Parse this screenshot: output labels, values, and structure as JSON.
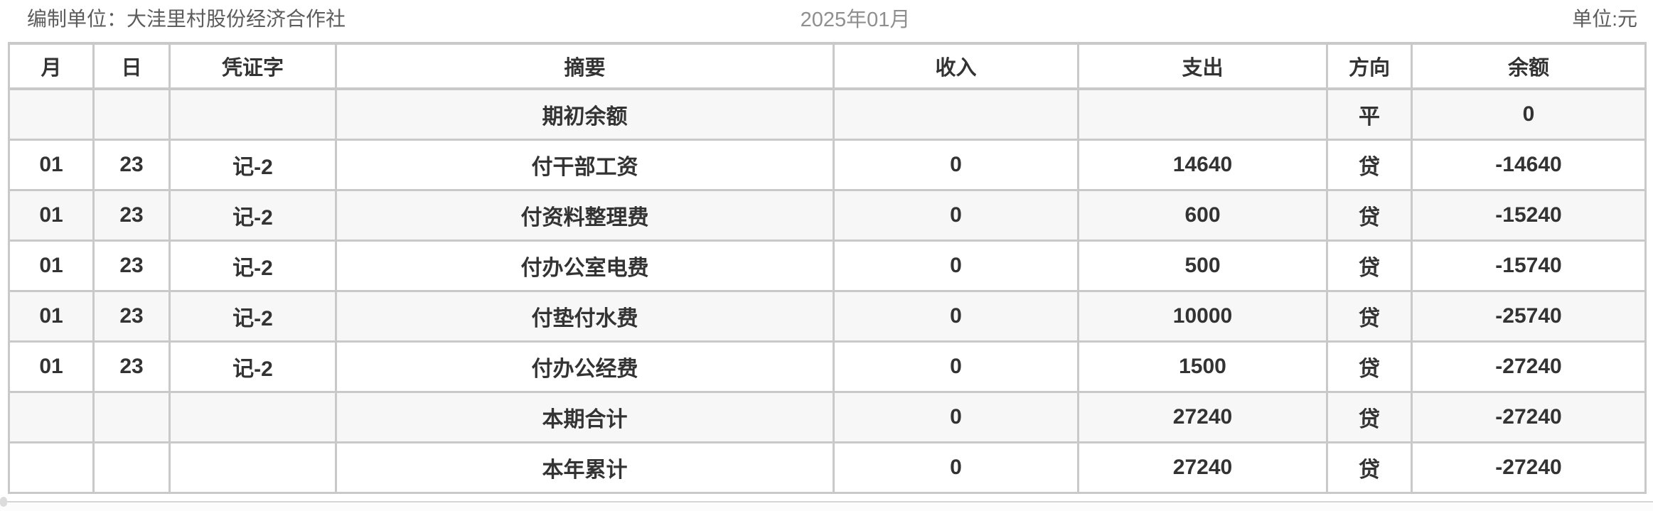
{
  "header": {
    "unit_label": "编制单位：大洼里村股份经济合作社",
    "period": "2025年01月",
    "currency_label": "单位:元"
  },
  "table": {
    "columns": [
      "月",
      "日",
      "凭证字",
      "摘要",
      "收入",
      "支出",
      "方向",
      "余额"
    ],
    "rows": [
      {
        "month": "",
        "day": "",
        "voucher": "",
        "summary": "期初余额",
        "income": "",
        "expense": "",
        "direction": "平",
        "balance": "0"
      },
      {
        "month": "01",
        "day": "23",
        "voucher": "记-2",
        "summary": "付干部工资",
        "income": "0",
        "expense": "14640",
        "direction": "贷",
        "balance": "-14640"
      },
      {
        "month": "01",
        "day": "23",
        "voucher": "记-2",
        "summary": "付资料整理费",
        "income": "0",
        "expense": "600",
        "direction": "贷",
        "balance": "-15240"
      },
      {
        "month": "01",
        "day": "23",
        "voucher": "记-2",
        "summary": "付办公室电费",
        "income": "0",
        "expense": "500",
        "direction": "贷",
        "balance": "-15740"
      },
      {
        "month": "01",
        "day": "23",
        "voucher": "记-2",
        "summary": "付垫付水费",
        "income": "0",
        "expense": "10000",
        "direction": "贷",
        "balance": "-25740"
      },
      {
        "month": "01",
        "day": "23",
        "voucher": "记-2",
        "summary": "付办公经费",
        "income": "0",
        "expense": "1500",
        "direction": "贷",
        "balance": "-27240"
      },
      {
        "month": "",
        "day": "",
        "voucher": "",
        "summary": "本期合计",
        "income": "0",
        "expense": "27240",
        "direction": "贷",
        "balance": "-27240"
      },
      {
        "month": "",
        "day": "",
        "voucher": "",
        "summary": "本年累计",
        "income": "0",
        "expense": "27240",
        "direction": "贷",
        "balance": "-27240"
      }
    ]
  },
  "colors": {
    "border": "#c9c9c9",
    "alt_row_bg": "#f7f7f7",
    "text_dark": "#333333",
    "text_gray": "#5c5c5c"
  }
}
